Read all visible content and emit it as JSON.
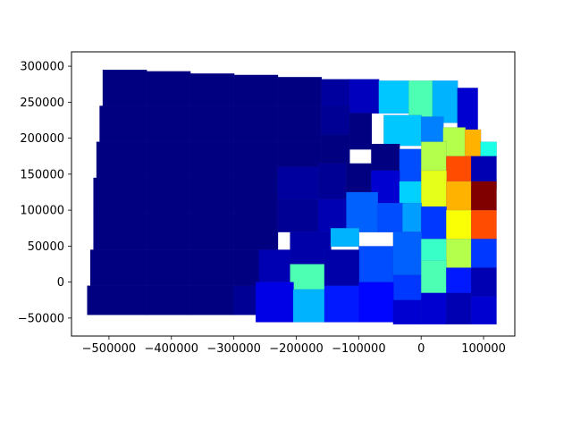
{
  "chart_data": {
    "type": "heatmap",
    "subtype": "choropleth",
    "title": "",
    "xlabel": "",
    "ylabel": "",
    "colormap": "jet",
    "xlim": [
      -560000,
      150000
    ],
    "ylim": [
      -75000,
      320000
    ],
    "x_ticks": [
      {
        "value": -500000,
        "label": "−500000"
      },
      {
        "value": -400000,
        "label": "−400000"
      },
      {
        "value": -300000,
        "label": "−300000"
      },
      {
        "value": -200000,
        "label": "−200000"
      },
      {
        "value": -100000,
        "label": "−100000"
      },
      {
        "value": 0,
        "label": "0"
      },
      {
        "value": 100000,
        "label": "100000"
      }
    ],
    "y_ticks": [
      {
        "value": -50000,
        "label": "−50000"
      },
      {
        "value": 0,
        "label": "0"
      },
      {
        "value": 50000,
        "label": "50000"
      },
      {
        "value": 100000,
        "label": "100000"
      },
      {
        "value": 150000,
        "label": "150000"
      },
      {
        "value": 200000,
        "label": "200000"
      },
      {
        "value": 250000,
        "label": "250000"
      },
      {
        "value": 300000,
        "label": "300000"
      }
    ],
    "grid": false,
    "legend": "none",
    "regions": [
      {
        "x": [
          -510000,
          -440000
        ],
        "y": [
          245000,
          295000
        ],
        "level": 0.0
      },
      {
        "x": [
          -440000,
          -370000
        ],
        "y": [
          245000,
          293000
        ],
        "level": 0.0
      },
      {
        "x": [
          -370000,
          -300000
        ],
        "y": [
          245000,
          290000
        ],
        "level": 0.0
      },
      {
        "x": [
          -300000,
          -230000
        ],
        "y": [
          245000,
          288000
        ],
        "level": 0.0
      },
      {
        "x": [
          -230000,
          -160000
        ],
        "y": [
          245000,
          285000
        ],
        "level": 0.0
      },
      {
        "x": [
          -160000,
          -115000
        ],
        "y": [
          245000,
          282000
        ],
        "level": 0.03
      },
      {
        "x": [
          -115000,
          -68000
        ],
        "y": [
          235000,
          282000
        ],
        "level": 0.06
      },
      {
        "x": [
          -68000,
          -20000
        ],
        "y": [
          235000,
          280000
        ],
        "level": 0.32
      },
      {
        "x": [
          -20000,
          18000
        ],
        "y": [
          230000,
          280000
        ],
        "level": 0.45
      },
      {
        "x": [
          18000,
          58000
        ],
        "y": [
          222000,
          280000
        ],
        "level": 0.3
      },
      {
        "x": [
          58000,
          90000
        ],
        "y": [
          212000,
          270000
        ],
        "level": 0.08
      },
      {
        "x": [
          -515000,
          -440000
        ],
        "y": [
          195000,
          245000
        ],
        "level": 0.0
      },
      {
        "x": [
          -440000,
          -370000
        ],
        "y": [
          195000,
          245000
        ],
        "level": 0.0
      },
      {
        "x": [
          -370000,
          -300000
        ],
        "y": [
          195000,
          245000
        ],
        "level": 0.0
      },
      {
        "x": [
          -300000,
          -230000
        ],
        "y": [
          195000,
          245000
        ],
        "level": 0.0
      },
      {
        "x": [
          -230000,
          -160000
        ],
        "y": [
          195000,
          245000
        ],
        "level": 0.0
      },
      {
        "x": [
          -160000,
          -115000
        ],
        "y": [
          205000,
          245000
        ],
        "level": 0.02
      },
      {
        "x": [
          -115000,
          -80000
        ],
        "y": [
          185000,
          235000
        ],
        "level": 0.0
      },
      {
        "x": [
          -60000,
          0
        ],
        "y": [
          190000,
          232000
        ],
        "level": 0.32
      },
      {
        "x": [
          0,
          35000
        ],
        "y": [
          195000,
          230000
        ],
        "level": 0.25
      },
      {
        "x": [
          35000,
          70000
        ],
        "y": [
          175000,
          215000
        ],
        "level": 0.55
      },
      {
        "x": [
          70000,
          95000
        ],
        "y": [
          168000,
          212000
        ],
        "level": 0.7
      },
      {
        "x": [
          95000,
          120000
        ],
        "y": [
          175000,
          195000
        ],
        "level": 0.4
      },
      {
        "x": [
          -520000,
          -440000
        ],
        "y": [
          145000,
          195000
        ],
        "level": 0.0
      },
      {
        "x": [
          -440000,
          -370000
        ],
        "y": [
          145000,
          195000
        ],
        "level": 0.0
      },
      {
        "x": [
          -370000,
          -300000
        ],
        "y": [
          145000,
          195000
        ],
        "level": 0.0
      },
      {
        "x": [
          -300000,
          -230000
        ],
        "y": [
          145000,
          195000
        ],
        "level": 0.0
      },
      {
        "x": [
          -230000,
          -160000
        ],
        "y": [
          145000,
          195000
        ],
        "level": 0.0
      },
      {
        "x": [
          -160000,
          -115000
        ],
        "y": [
          165000,
          205000
        ],
        "level": 0.0
      },
      {
        "x": [
          -80000,
          -35000
        ],
        "y": [
          155000,
          192000
        ],
        "level": 0.0
      },
      {
        "x": [
          -35000,
          0
        ],
        "y": [
          140000,
          185000
        ],
        "level": 0.2
      },
      {
        "x": [
          0,
          40000
        ],
        "y": [
          155000,
          195000
        ],
        "level": 0.55
      },
      {
        "x": [
          40000,
          80000
        ],
        "y": [
          140000,
          175000
        ],
        "level": 0.8
      },
      {
        "x": [
          80000,
          120000
        ],
        "y": [
          130000,
          175000
        ],
        "level": 0.05
      },
      {
        "x": [
          -525000,
          -440000
        ],
        "y": [
          95000,
          145000
        ],
        "level": 0.0
      },
      {
        "x": [
          -440000,
          -370000
        ],
        "y": [
          95000,
          145000
        ],
        "level": 0.0
      },
      {
        "x": [
          -370000,
          -300000
        ],
        "y": [
          95000,
          145000
        ],
        "level": 0.0
      },
      {
        "x": [
          -300000,
          -230000
        ],
        "y": [
          95000,
          145000
        ],
        "level": 0.0
      },
      {
        "x": [
          -230000,
          -165000
        ],
        "y": [
          115000,
          160000
        ],
        "level": 0.03
      },
      {
        "x": [
          -165000,
          -120000
        ],
        "y": [
          115000,
          165000
        ],
        "level": 0.02
      },
      {
        "x": [
          -120000,
          -80000
        ],
        "y": [
          115000,
          165000
        ],
        "level": 0.0
      },
      {
        "x": [
          -80000,
          -35000
        ],
        "y": [
          110000,
          155000
        ],
        "level": 0.08
      },
      {
        "x": [
          -35000,
          0
        ],
        "y": [
          95000,
          140000
        ],
        "level": 0.33
      },
      {
        "x": [
          0,
          40000
        ],
        "y": [
          105000,
          155000
        ],
        "level": 0.6
      },
      {
        "x": [
          40000,
          80000
        ],
        "y": [
          100000,
          140000
        ],
        "level": 0.7
      },
      {
        "x": [
          80000,
          120000
        ],
        "y": [
          100000,
          140000
        ],
        "level": 1.0
      },
      {
        "x": [
          -525000,
          -440000
        ],
        "y": [
          45000,
          95000
        ],
        "level": 0.0
      },
      {
        "x": [
          -440000,
          -370000
        ],
        "y": [
          45000,
          95000
        ],
        "level": 0.0
      },
      {
        "x": [
          -370000,
          -300000
        ],
        "y": [
          45000,
          95000
        ],
        "level": 0.0
      },
      {
        "x": [
          -300000,
          -230000
        ],
        "y": [
          45000,
          95000
        ],
        "level": 0.0
      },
      {
        "x": [
          -230000,
          -165000
        ],
        "y": [
          70000,
          115000
        ],
        "level": 0.02
      },
      {
        "x": [
          -165000,
          -120000
        ],
        "y": [
          70000,
          115000
        ],
        "level": 0.05
      },
      {
        "x": [
          -120000,
          -70000
        ],
        "y": [
          70000,
          125000
        ],
        "level": 0.22
      },
      {
        "x": [
          -70000,
          -30000
        ],
        "y": [
          70000,
          110000
        ],
        "level": 0.2
      },
      {
        "x": [
          -30000,
          0
        ],
        "y": [
          70000,
          110000
        ],
        "level": 0.28
      },
      {
        "x": [
          0,
          40000
        ],
        "y": [
          60000,
          105000
        ],
        "level": 0.18
      },
      {
        "x": [
          40000,
          80000
        ],
        "y": [
          60000,
          100000
        ],
        "level": 0.62
      },
      {
        "x": [
          80000,
          120000
        ],
        "y": [
          60000,
          100000
        ],
        "level": 0.8
      },
      {
        "x": [
          -530000,
          -440000
        ],
        "y": [
          -5000,
          45000
        ],
        "level": 0.0
      },
      {
        "x": [
          -440000,
          -370000
        ],
        "y": [
          -5000,
          45000
        ],
        "level": 0.0
      },
      {
        "x": [
          -370000,
          -300000
        ],
        "y": [
          -5000,
          45000
        ],
        "level": 0.0
      },
      {
        "x": [
          -300000,
          -260000
        ],
        "y": [
          -5000,
          45000
        ],
        "level": 0.0
      },
      {
        "x": [
          -260000,
          -210000
        ],
        "y": [
          0,
          45000
        ],
        "level": 0.05
      },
      {
        "x": [
          -210000,
          -145000
        ],
        "y": [
          25000,
          70000
        ],
        "level": 0.04
      },
      {
        "x": [
          -145000,
          -100000
        ],
        "y": [
          50000,
          75000
        ],
        "level": 0.3
      },
      {
        "x": [
          -100000,
          -45000
        ],
        "y": [
          0,
          50000
        ],
        "level": 0.2
      },
      {
        "x": [
          -45000,
          0
        ],
        "y": [
          10000,
          70000
        ],
        "level": 0.22
      },
      {
        "x": [
          0,
          40000
        ],
        "y": [
          30000,
          60000
        ],
        "level": 0.43
      },
      {
        "x": [
          40000,
          80000
        ],
        "y": [
          20000,
          60000
        ],
        "level": 0.55
      },
      {
        "x": [
          80000,
          120000
        ],
        "y": [
          20000,
          60000
        ],
        "level": 0.18
      },
      {
        "x": [
          -210000,
          -155000
        ],
        "y": [
          -10000,
          25000
        ],
        "level": 0.45
      },
      {
        "x": [
          -155000,
          -100000
        ],
        "y": [
          -5000,
          45000
        ],
        "level": 0.04
      },
      {
        "x": [
          -45000,
          0
        ],
        "y": [
          -25000,
          10000
        ],
        "level": 0.18
      },
      {
        "x": [
          0,
          40000
        ],
        "y": [
          -15000,
          30000
        ],
        "level": 0.45
      },
      {
        "x": [
          40000,
          80000
        ],
        "y": [
          -15000,
          20000
        ],
        "level": 0.15
      },
      {
        "x": [
          80000,
          120000
        ],
        "y": [
          -20000,
          20000
        ],
        "level": 0.05
      },
      {
        "x": [
          -535000,
          -440000
        ],
        "y": [
          -45000,
          -5000
        ],
        "level": 0.0
      },
      {
        "x": [
          -440000,
          -370000
        ],
        "y": [
          -45000,
          -5000
        ],
        "level": 0.0
      },
      {
        "x": [
          -370000,
          -300000
        ],
        "y": [
          -45000,
          -5000
        ],
        "level": 0.0
      },
      {
        "x": [
          -300000,
          -265000
        ],
        "y": [
          -45000,
          -5000
        ],
        "level": 0.02
      },
      {
        "x": [
          -265000,
          -205000
        ],
        "y": [
          -55000,
          0
        ],
        "level": 0.1
      },
      {
        "x": [
          -205000,
          -155000
        ],
        "y": [
          -55000,
          -10000
        ],
        "level": 0.3
      },
      {
        "x": [
          -155000,
          -100000
        ],
        "y": [
          -55000,
          -5000
        ],
        "level": 0.15
      },
      {
        "x": [
          -100000,
          -45000
        ],
        "y": [
          -55000,
          0
        ],
        "level": 0.13
      },
      {
        "x": [
          -45000,
          0
        ],
        "y": [
          -58000,
          -25000
        ],
        "level": 0.08
      },
      {
        "x": [
          0,
          40000
        ],
        "y": [
          -58000,
          -15000
        ],
        "level": 0.08
      },
      {
        "x": [
          40000,
          80000
        ],
        "y": [
          -58000,
          -15000
        ],
        "level": 0.05
      },
      {
        "x": [
          80000,
          120000
        ],
        "y": [
          -58000,
          -20000
        ],
        "level": 0.08
      }
    ]
  }
}
